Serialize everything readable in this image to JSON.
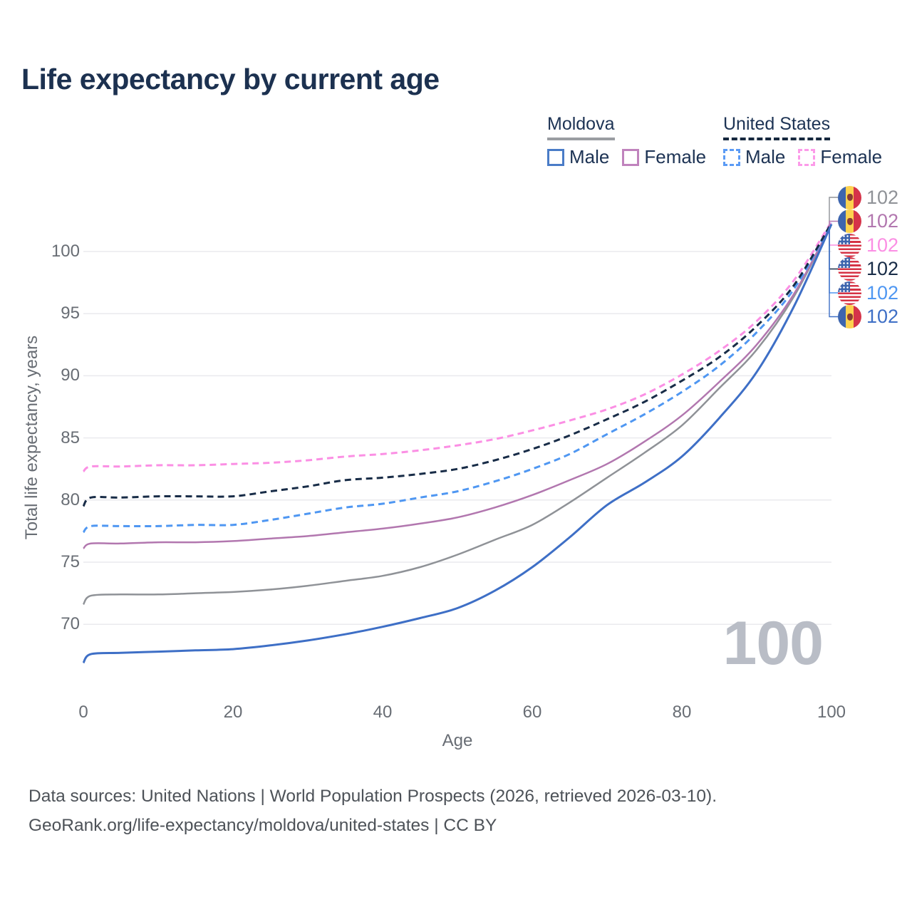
{
  "title": "Life expectancy by current age",
  "legend": {
    "groups": [
      {
        "label": "Moldova",
        "line_style": "solid",
        "underline_color": "#9a9da2",
        "items": [
          {
            "label": "Male"
          },
          {
            "label": "Female"
          }
        ]
      },
      {
        "label": "United States",
        "line_style": "dashed",
        "underline_color": "#16283e",
        "items": [
          {
            "label": "Male"
          },
          {
            "label": "Female"
          }
        ]
      }
    ]
  },
  "footer": {
    "line1": "Data sources: United Nations | World Population Prospects (2026, retrieved 2026-03-10).",
    "line2": "GeoRank.org/life-expectancy/moldova/united-states | CC BY"
  },
  "chart_data": {
    "type": "line",
    "title": "Life expectancy by current age",
    "xlabel": "Age",
    "ylabel": "Total life expectancy, years",
    "xlim": [
      0,
      100
    ],
    "ylim": [
      66,
      103
    ],
    "xticks": [
      0,
      20,
      40,
      60,
      80,
      100
    ],
    "yticks": [
      70,
      75,
      80,
      85,
      90,
      95,
      100
    ],
    "grid": "horizontal",
    "age_indicator": "100",
    "ages": [
      0,
      1,
      5,
      10,
      15,
      20,
      25,
      30,
      35,
      40,
      45,
      50,
      55,
      60,
      65,
      70,
      75,
      80,
      85,
      90,
      95,
      100
    ],
    "series": [
      {
        "name": "Moldova Total",
        "country": "Moldova",
        "sex": "Total",
        "color": "#8f9297",
        "dash": false,
        "width": 2.5,
        "values": [
          71.6,
          72.3,
          72.4,
          72.4,
          72.5,
          72.6,
          72.8,
          73.1,
          73.5,
          73.9,
          74.6,
          75.6,
          76.8,
          78.0,
          79.8,
          81.8,
          83.8,
          86.0,
          89.0,
          92.1,
          96.4,
          102.2
        ]
      },
      {
        "name": "Moldova Female",
        "country": "Moldova",
        "sex": "Female",
        "color": "#b277af",
        "dash": false,
        "width": 2.5,
        "values": [
          76.1,
          76.5,
          76.5,
          76.6,
          76.6,
          76.7,
          76.9,
          77.1,
          77.4,
          77.7,
          78.1,
          78.6,
          79.4,
          80.4,
          81.6,
          82.9,
          84.7,
          86.8,
          89.5,
          92.5,
          96.6,
          102.2
        ]
      },
      {
        "name": "United States Female",
        "country": "United States",
        "sex": "Female",
        "color": "#fb8fe4",
        "dash": true,
        "width": 3,
        "values": [
          82.3,
          82.7,
          82.7,
          82.8,
          82.8,
          82.9,
          83.0,
          83.2,
          83.5,
          83.7,
          84.0,
          84.4,
          84.9,
          85.6,
          86.4,
          87.3,
          88.5,
          90.1,
          92.0,
          94.4,
          97.7,
          102.4
        ]
      },
      {
        "name": "United States Male",
        "country": "United States",
        "sex": "Male",
        "color": "#4f97f2",
        "dash": true,
        "width": 3,
        "values": [
          77.4,
          77.9,
          77.9,
          77.9,
          78.0,
          78.0,
          78.4,
          78.9,
          79.4,
          79.7,
          80.2,
          80.7,
          81.5,
          82.5,
          83.7,
          85.3,
          86.9,
          88.7,
          90.8,
          93.5,
          97.0,
          102.3
        ]
      },
      {
        "name": "United States Total",
        "country": "United States",
        "sex": "Total",
        "color": "#182c47",
        "dash": true,
        "width": 3,
        "values": [
          79.5,
          80.2,
          80.2,
          80.3,
          80.3,
          80.3,
          80.7,
          81.1,
          81.6,
          81.8,
          82.1,
          82.5,
          83.2,
          84.1,
          85.2,
          86.5,
          87.9,
          89.6,
          91.5,
          94.0,
          97.3,
          102.3
        ]
      },
      {
        "name": "Moldova Male",
        "country": "Moldova",
        "sex": "Male",
        "color": "#3e6fc6",
        "dash": false,
        "width": 3,
        "values": [
          66.9,
          67.6,
          67.7,
          67.8,
          67.9,
          68.0,
          68.3,
          68.7,
          69.2,
          69.8,
          70.5,
          71.3,
          72.7,
          74.6,
          77.0,
          79.6,
          81.4,
          83.5,
          86.6,
          90.3,
          95.6,
          102.2
        ]
      }
    ],
    "end_labels": [
      {
        "flag": "md",
        "series": "Moldova Total",
        "value": "102",
        "color": "#8f9297"
      },
      {
        "flag": "md",
        "series": "Moldova Female",
        "value": "102",
        "color": "#b277af"
      },
      {
        "flag": "us",
        "series": "United States Female",
        "value": "102",
        "color": "#fb8fe4"
      },
      {
        "flag": "us",
        "series": "United States Total",
        "value": "102",
        "color": "#182c47"
      },
      {
        "flag": "us",
        "series": "United States Male",
        "value": "102",
        "color": "#4f97f2"
      },
      {
        "flag": "md",
        "series": "Moldova Male",
        "value": "102",
        "color": "#3e6fc6"
      }
    ],
    "colors": {
      "moldova_male": "#3e6fc6",
      "moldova_female": "#b277af",
      "moldova_total": "#8f9297",
      "us_male": "#4f97f2",
      "us_female": "#fb8fe4",
      "us_total": "#182c47",
      "grid": "#eaeaee",
      "axis_text": "#686d74",
      "watermark": "#b9bdc6"
    }
  }
}
